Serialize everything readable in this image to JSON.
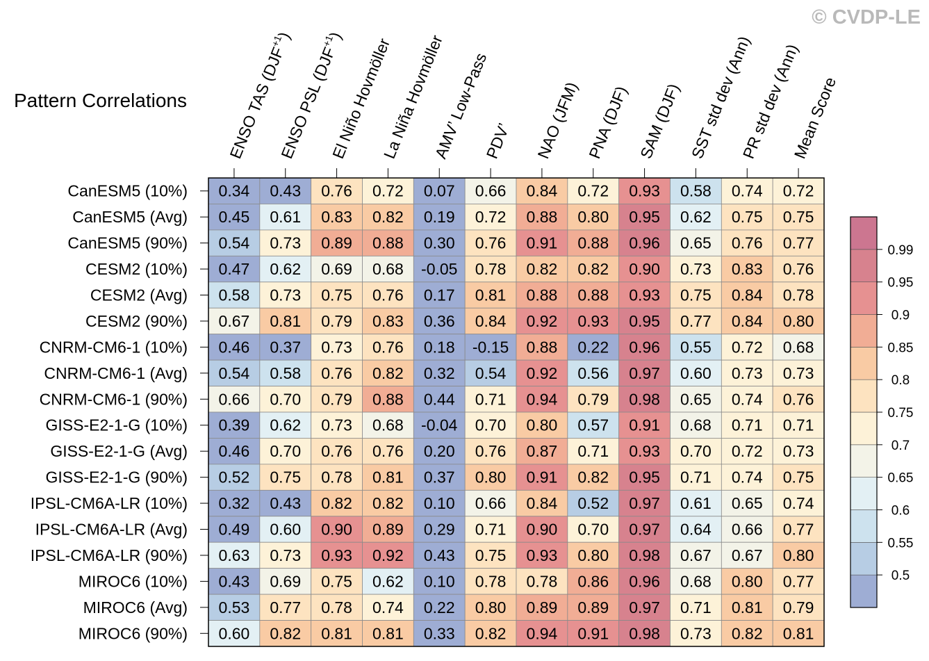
{
  "chart_data": {
    "type": "heatmap",
    "title": "Pattern Correlations",
    "watermark": "© CVDP-LE",
    "columns": [
      "ENSO TAS (DJF+1)",
      "ENSO PSL (DJF+1)",
      "El Niño Hovmöller",
      "La Niña Hovmöller",
      "AMV’ Low-Pass",
      "PDV’",
      "NAO (JFM)",
      "PNA (DJF)",
      "SAM (DJF)",
      "SST std dev (Ann)",
      "PR std dev (Ann)",
      "Mean Score"
    ],
    "rows": [
      {
        "label": "CanESM5 (10%)",
        "values": [
          "0.34",
          "0.43",
          "0.76",
          "0.72",
          "0.07",
          "0.66",
          "0.84",
          "0.72",
          "0.93",
          "0.58",
          "0.74",
          "0.72"
        ]
      },
      {
        "label": "CanESM5 (Avg)",
        "values": [
          "0.45",
          "0.61",
          "0.83",
          "0.82",
          "0.19",
          "0.72",
          "0.88",
          "0.80",
          "0.95",
          "0.62",
          "0.75",
          "0.75"
        ]
      },
      {
        "label": "CanESM5 (90%)",
        "values": [
          "0.54",
          "0.73",
          "0.89",
          "0.88",
          "0.30",
          "0.76",
          "0.91",
          "0.88",
          "0.96",
          "0.65",
          "0.76",
          "0.77"
        ]
      },
      {
        "label": "CESM2 (10%)",
        "values": [
          "0.47",
          "0.62",
          "0.69",
          "0.68",
          "-0.05",
          "0.78",
          "0.82",
          "0.82",
          "0.90",
          "0.73",
          "0.83",
          "0.76"
        ]
      },
      {
        "label": "CESM2 (Avg)",
        "values": [
          "0.58",
          "0.73",
          "0.75",
          "0.76",
          "0.17",
          "0.81",
          "0.88",
          "0.88",
          "0.93",
          "0.75",
          "0.84",
          "0.78"
        ]
      },
      {
        "label": "CESM2 (90%)",
        "values": [
          "0.67",
          "0.81",
          "0.79",
          "0.83",
          "0.36",
          "0.84",
          "0.92",
          "0.93",
          "0.95",
          "0.77",
          "0.84",
          "0.80"
        ]
      },
      {
        "label": "CNRM-CM6-1 (10%)",
        "values": [
          "0.46",
          "0.37",
          "0.73",
          "0.76",
          "0.18",
          "-0.15",
          "0.88",
          "0.22",
          "0.96",
          "0.55",
          "0.72",
          "0.68"
        ]
      },
      {
        "label": "CNRM-CM6-1 (Avg)",
        "values": [
          "0.54",
          "0.58",
          "0.76",
          "0.82",
          "0.32",
          "0.54",
          "0.92",
          "0.56",
          "0.97",
          "0.60",
          "0.73",
          "0.73"
        ]
      },
      {
        "label": "CNRM-CM6-1 (90%)",
        "values": [
          "0.66",
          "0.70",
          "0.79",
          "0.88",
          "0.44",
          "0.71",
          "0.94",
          "0.79",
          "0.98",
          "0.65",
          "0.74",
          "0.76"
        ]
      },
      {
        "label": "GISS-E2-1-G (10%)",
        "values": [
          "0.39",
          "0.62",
          "0.73",
          "0.68",
          "-0.04",
          "0.70",
          "0.80",
          "0.57",
          "0.91",
          "0.68",
          "0.71",
          "0.71"
        ]
      },
      {
        "label": "GISS-E2-1-G (Avg)",
        "values": [
          "0.46",
          "0.70",
          "0.76",
          "0.76",
          "0.20",
          "0.76",
          "0.87",
          "0.71",
          "0.93",
          "0.70",
          "0.72",
          "0.73"
        ]
      },
      {
        "label": "GISS-E2-1-G (90%)",
        "values": [
          "0.52",
          "0.75",
          "0.78",
          "0.81",
          "0.37",
          "0.80",
          "0.91",
          "0.82",
          "0.95",
          "0.71",
          "0.74",
          "0.75"
        ]
      },
      {
        "label": "IPSL-CM6A-LR (10%)",
        "values": [
          "0.32",
          "0.43",
          "0.82",
          "0.82",
          "0.10",
          "0.66",
          "0.84",
          "0.52",
          "0.97",
          "0.61",
          "0.65",
          "0.74"
        ]
      },
      {
        "label": "IPSL-CM6A-LR (Avg)",
        "values": [
          "0.49",
          "0.60",
          "0.90",
          "0.89",
          "0.29",
          "0.71",
          "0.90",
          "0.70",
          "0.97",
          "0.64",
          "0.66",
          "0.77"
        ]
      },
      {
        "label": "IPSL-CM6A-LR (90%)",
        "values": [
          "0.63",
          "0.73",
          "0.93",
          "0.92",
          "0.43",
          "0.75",
          "0.93",
          "0.80",
          "0.98",
          "0.67",
          "0.67",
          "0.80"
        ]
      },
      {
        "label": "MIROC6 (10%)",
        "values": [
          "0.43",
          "0.69",
          "0.75",
          "0.62",
          "0.10",
          "0.78",
          "0.78",
          "0.86",
          "0.96",
          "0.68",
          "0.80",
          "0.77"
        ]
      },
      {
        "label": "MIROC6 (Avg)",
        "values": [
          "0.53",
          "0.77",
          "0.78",
          "0.74",
          "0.22",
          "0.80",
          "0.89",
          "0.89",
          "0.97",
          "0.71",
          "0.81",
          "0.79"
        ]
      },
      {
        "label": "MIROC6 (90%)",
        "values": [
          "0.60",
          "0.82",
          "0.81",
          "0.81",
          "0.33",
          "0.82",
          "0.94",
          "0.91",
          "0.98",
          "0.73",
          "0.82",
          "0.81"
        ]
      }
    ],
    "colorbar": {
      "levels": [
        "0.5",
        "0.55",
        "0.6",
        "0.65",
        "0.7",
        "0.75",
        "0.8",
        "0.85",
        "0.9",
        "0.95",
        "0.99"
      ],
      "level_values": [
        0.5,
        0.55,
        0.6,
        0.65,
        0.7,
        0.75,
        0.8,
        0.85,
        0.9,
        0.95,
        0.99
      ],
      "colors": [
        "#9eadd4",
        "#b7cde4",
        "#cde2ee",
        "#e3f0f4",
        "#f3f3e8",
        "#fdf2d8",
        "#fde3c0",
        "#f9cba4",
        "#f1ad95",
        "#e69191",
        "#d7828e",
        "#cc7690"
      ]
    }
  }
}
